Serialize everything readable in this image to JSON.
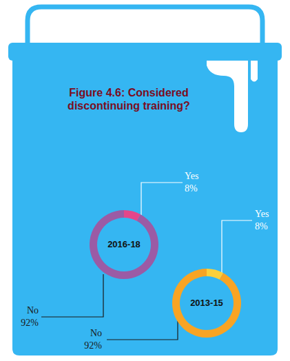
{
  "chart_data": [
    {
      "type": "pie",
      "title": "Figure 4.6: Considered discontinuing training?",
      "subtitle": "2016-18",
      "categories": [
        "Yes",
        "No"
      ],
      "values": [
        8,
        92
      ],
      "value_labels": [
        "8%",
        "92%"
      ],
      "colors": [
        "#e5468a",
        "#9b5ba5"
      ],
      "data_labels": true
    },
    {
      "type": "pie",
      "subtitle": "2013-15",
      "categories": [
        "Yes",
        "No"
      ],
      "values": [
        8,
        92
      ],
      "value_labels": [
        "8%",
        "92%"
      ],
      "colors": [
        "#fdd03a",
        "#f8a424"
      ],
      "data_labels": true
    }
  ]
}
